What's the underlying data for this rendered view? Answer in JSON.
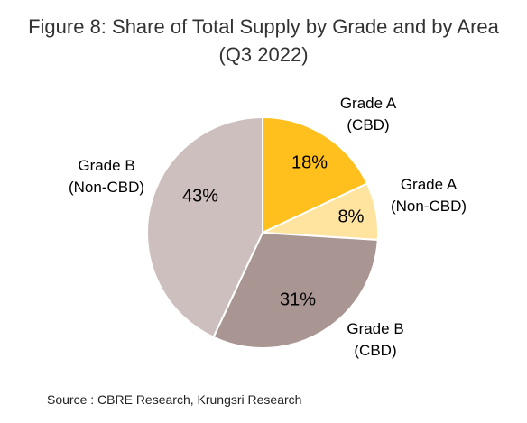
{
  "title_line1": "Figure 8: Share of Total Supply by Grade and by Area",
  "title_line2": "(Q3 2022)",
  "source": "Source : CBRE Research, Krungsri Research",
  "chart_data": {
    "type": "pie",
    "title": "Figure 8: Share of Total Supply by Grade and by Area (Q3 2022)",
    "slices": [
      {
        "label": [
          "Grade A",
          "(CBD)"
        ],
        "value": 18,
        "text": "18%",
        "color": "#FFC01E"
      },
      {
        "label": [
          "Grade A",
          "(Non-CBD)"
        ],
        "value": 8,
        "text": "8%",
        "color": "#FFE4A0"
      },
      {
        "label": [
          "Grade B",
          "(CBD)"
        ],
        "value": 31,
        "text": "31%",
        "color": "#A99592"
      },
      {
        "label": [
          "Grade B",
          "(Non-CBD)"
        ],
        "value": 43,
        "text": "43%",
        "color": "#CDBFBD"
      }
    ],
    "start_angle_deg": 0,
    "direction": "clockwise"
  }
}
